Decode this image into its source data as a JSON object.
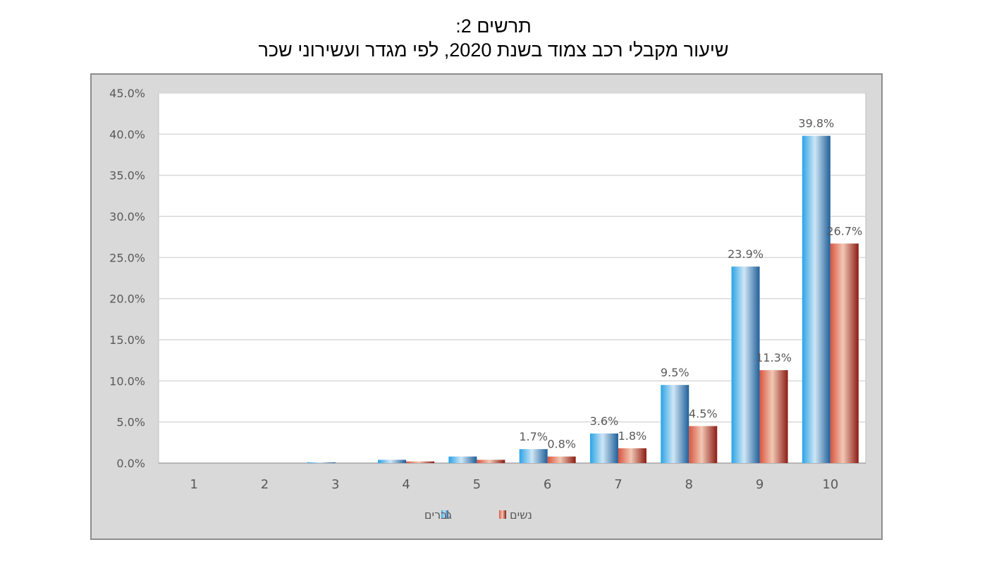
{
  "header": {
    "title_line1": "תרשים 2:",
    "title_line2": "שיעור מקבלי רכב צמוד בשנת 2020, לפי מגדר ועשירוני שכר"
  },
  "chart_data": {
    "type": "bar",
    "title": "",
    "categories": [
      "1",
      "2",
      "3",
      "4",
      "5",
      "6",
      "7",
      "8",
      "9",
      "10"
    ],
    "series": [
      {
        "name": "גברים",
        "color": "#2e86c8",
        "values": [
          0.0,
          0.0,
          0.1,
          0.4,
          0.8,
          1.7,
          3.6,
          9.5,
          23.9,
          39.8
        ],
        "labels": [
          "",
          "",
          "",
          "",
          "",
          "1.7%",
          "3.6%",
          "9.5%",
          "23.9%",
          "39.8%"
        ]
      },
      {
        "name": "נשים",
        "color": "#b33a2a",
        "values": [
          0.0,
          0.0,
          0.0,
          0.2,
          0.4,
          0.8,
          1.8,
          4.5,
          11.3,
          26.7
        ],
        "labels": [
          "",
          "",
          "",
          "",
          "",
          "0.8%",
          "1.8%",
          "4.5%",
          "11.3%",
          "26.7%"
        ]
      }
    ],
    "ylim": [
      0,
      45
    ],
    "yticks": [
      "0.0%",
      "5.0%",
      "10.0%",
      "15.0%",
      "20.0%",
      "25.0%",
      "30.0%",
      "35.0%",
      "40.0%",
      "45.0%"
    ],
    "ytick_values": [
      0,
      5,
      10,
      15,
      20,
      25,
      30,
      35,
      40,
      45
    ],
    "grid": true,
    "legend": "bottom"
  }
}
